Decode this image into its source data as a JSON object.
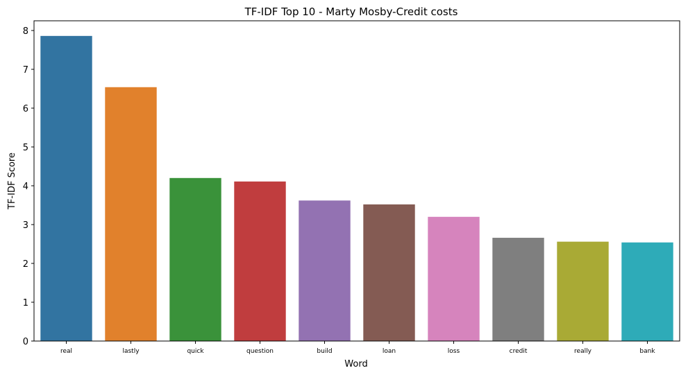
{
  "chart_data": {
    "type": "bar",
    "title": "TF-IDF Top 10 - Marty Mosby-Credit costs",
    "xlabel": "Word",
    "ylabel": "TF-IDF Score",
    "categories": [
      "real",
      "lastly",
      "quick",
      "question",
      "build",
      "loan",
      "loss",
      "credit",
      "really",
      "bank"
    ],
    "values": [
      7.86,
      6.54,
      4.2,
      4.11,
      3.62,
      3.52,
      3.2,
      2.66,
      2.56,
      2.54
    ],
    "colors": [
      "#3274a1",
      "#e1812c",
      "#3a923a",
      "#c03d3e",
      "#9372b2",
      "#845b53",
      "#d684bd",
      "#7f7f7f",
      "#a9aa35",
      "#2eabb8"
    ],
    "yticks": [
      "0",
      "1",
      "2",
      "3",
      "4",
      "5",
      "6",
      "7",
      "8"
    ],
    "ylim": [
      0,
      8.25
    ],
    "grid": false,
    "legend": "none"
  }
}
